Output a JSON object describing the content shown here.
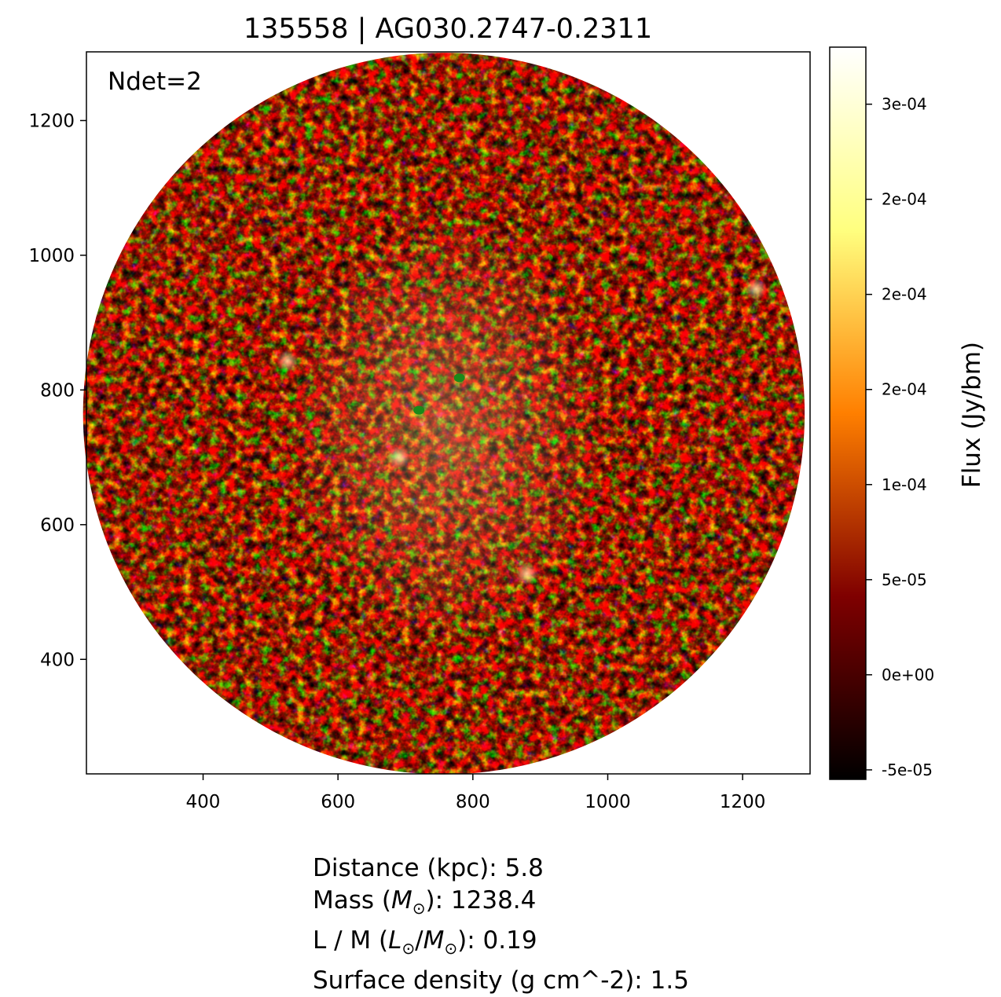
{
  "title": "135558 | AG030.2747-0.2311",
  "annotation": "Ndet=2",
  "chart_data": {
    "type": "heatmap",
    "title": "135558 | AG030.2747-0.2311",
    "xlabel": "",
    "ylabel": "",
    "xlim": [
      227,
      1300
    ],
    "ylim": [
      230,
      1302
    ],
    "xticks": [
      400,
      600,
      800,
      1000,
      1200
    ],
    "yticks": [
      400,
      600,
      800,
      1000,
      1200
    ],
    "image": {
      "shape": "circle",
      "center": [
        757,
        765
      ],
      "radius": 535,
      "colormap": "afmhot"
    },
    "detections": [
      {
        "x": 780,
        "y": 818,
        "color": "#1a8a1a"
      },
      {
        "x": 720,
        "y": 770,
        "color": "#1a8a1a"
      }
    ],
    "bright_spots": [
      {
        "x": 880,
        "y": 527
      },
      {
        "x": 525,
        "y": 843
      },
      {
        "x": 1220,
        "y": 950
      },
      {
        "x": 690,
        "y": 700
      }
    ],
    "colorbar": {
      "label": "Flux (Jy/bm)",
      "min": -5.5e-05,
      "max": 0.00033,
      "tick_values": [
        -5e-05,
        0,
        5e-05,
        0.0001,
        0.00015,
        0.0002,
        0.00025,
        0.0003
      ],
      "tick_labels": [
        "-5e-05",
        "0e+00",
        "5e-05",
        "1e-04",
        "2e-04",
        "2e-04",
        "2e-04",
        "3e-04"
      ]
    },
    "grid": false
  },
  "info": {
    "distance": "Distance (kpc): 5.8",
    "mass_prefix": "Mass (",
    "mass_unit": "M",
    "mass_sub": "⊙",
    "mass_suffix": "): 1238.4",
    "lm_prefix": "L / M (",
    "lm_l": "L",
    "lm_sub1": "⊙",
    "lm_slash": "/",
    "lm_m": "M",
    "lm_sub2": "⊙",
    "lm_suffix": "): 0.19",
    "surface_density": "Surface density (g cm^-2): 1.5"
  }
}
